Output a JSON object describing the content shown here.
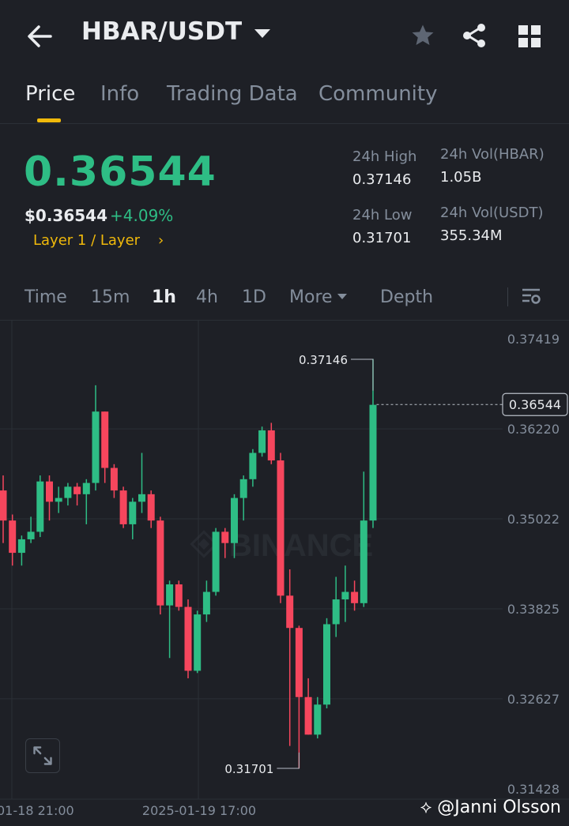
{
  "header": {
    "pair": "HBAR/USDT",
    "icons": [
      "back-arrow-icon",
      "dropdown-caret-icon",
      "star-icon",
      "share-icon",
      "grid-icon"
    ]
  },
  "tabs": [
    {
      "label": "Price",
      "active": true
    },
    {
      "label": "Info",
      "active": false
    },
    {
      "label": "Trading Data",
      "active": false
    },
    {
      "label": "Community",
      "active": false
    }
  ],
  "price": {
    "last": "0.36544",
    "usd": "$0.36544",
    "change": "+4.09%",
    "tag": "Layer 1 / Layer",
    "tag_chevron": "›"
  },
  "stats": {
    "high_label": "24h High",
    "high_value": "0.37146",
    "low_label": "24h Low",
    "low_value": "0.31701",
    "vol_base_label": "24h Vol(HBAR)",
    "vol_base_value": "1.05B",
    "vol_quote_label": "24h Vol(USDT)",
    "vol_quote_value": "355.34M"
  },
  "timeframes": [
    {
      "label": "Time",
      "active": false
    },
    {
      "label": "15m",
      "active": false
    },
    {
      "label": "1h",
      "active": true
    },
    {
      "label": "4h",
      "active": false
    },
    {
      "label": "1D",
      "active": false
    },
    {
      "label": "More",
      "active": false
    },
    {
      "label": "Depth",
      "active": false
    }
  ],
  "colors": {
    "up": "#2ebd85",
    "down": "#f6465d",
    "accent": "#f0b90b",
    "background": "#1e2026"
  },
  "chart_data": {
    "type": "candlestick",
    "interval": "1h",
    "y_ticks": [
      "0.37419",
      "0.36220",
      "0.35022",
      "0.33825",
      "0.32627",
      "0.31428"
    ],
    "ylim": [
      0.31428,
      0.37419
    ],
    "x_tick_labels": [
      "2025-01-18 21:00",
      "2025-01-19 17:00"
    ],
    "x_tick_label_display": [
      "01-18 21:00",
      "2025-01-19 17:00"
    ],
    "current_price_label": "0.36544",
    "high_marker": "0.37146",
    "low_marker": "0.31701",
    "watermark": "BINANCE",
    "candles": [
      [
        0.354,
        0.35,
        0.347,
        0.356
      ],
      [
        0.35,
        0.3457,
        0.344,
        0.3508
      ],
      [
        0.3457,
        0.3475,
        0.344,
        0.348
      ],
      [
        0.3475,
        0.3485,
        0.347,
        0.3505
      ],
      [
        0.3485,
        0.3552,
        0.3478,
        0.356
      ],
      [
        0.3552,
        0.3525,
        0.35,
        0.356
      ],
      [
        0.3525,
        0.353,
        0.351,
        0.3545
      ],
      [
        0.353,
        0.3545,
        0.352,
        0.355
      ],
      [
        0.3545,
        0.3535,
        0.352,
        0.355
      ],
      [
        0.3535,
        0.355,
        0.3495,
        0.3555
      ],
      [
        0.355,
        0.3645,
        0.354,
        0.368
      ],
      [
        0.3645,
        0.357,
        0.355,
        0.3645
      ],
      [
        0.357,
        0.354,
        0.353,
        0.3575
      ],
      [
        0.354,
        0.3495,
        0.349,
        0.3545
      ],
      [
        0.3495,
        0.3525,
        0.3475,
        0.353
      ],
      [
        0.3525,
        0.3535,
        0.351,
        0.359
      ],
      [
        0.3535,
        0.35,
        0.349,
        0.354
      ],
      [
        0.35,
        0.3387,
        0.3375,
        0.3505
      ],
      [
        0.3387,
        0.3415,
        0.3317,
        0.342
      ],
      [
        0.3415,
        0.3385,
        0.338,
        0.342
      ],
      [
        0.3385,
        0.33,
        0.329,
        0.3395
      ],
      [
        0.33,
        0.3375,
        0.3297,
        0.338
      ],
      [
        0.3375,
        0.3405,
        0.3365,
        0.342
      ],
      [
        0.3405,
        0.3485,
        0.34,
        0.349
      ],
      [
        0.3485,
        0.347,
        0.345,
        0.349
      ],
      [
        0.347,
        0.353,
        0.345,
        0.3535
      ],
      [
        0.353,
        0.3555,
        0.35,
        0.356
      ],
      [
        0.3555,
        0.359,
        0.3545,
        0.3595
      ],
      [
        0.359,
        0.362,
        0.3585,
        0.3625
      ],
      [
        0.362,
        0.358,
        0.3575,
        0.363
      ],
      [
        0.358,
        0.34,
        0.339,
        0.359
      ],
      [
        0.34,
        0.3357,
        0.32,
        0.3435
      ],
      [
        0.3357,
        0.3265,
        0.317,
        0.336
      ],
      [
        0.3265,
        0.3215,
        0.3215,
        0.329
      ],
      [
        0.3215,
        0.3255,
        0.321,
        0.3265
      ],
      [
        0.3255,
        0.3362,
        0.325,
        0.337
      ],
      [
        0.3362,
        0.3395,
        0.3345,
        0.3425
      ],
      [
        0.3395,
        0.3405,
        0.3365,
        0.344
      ],
      [
        0.3405,
        0.339,
        0.338,
        0.342
      ],
      [
        0.339,
        0.35,
        0.3385,
        0.3565
      ],
      [
        0.35,
        0.3654,
        0.349,
        0.3715
      ]
    ]
  },
  "footer": {
    "credit": "@Janni Olsson"
  }
}
